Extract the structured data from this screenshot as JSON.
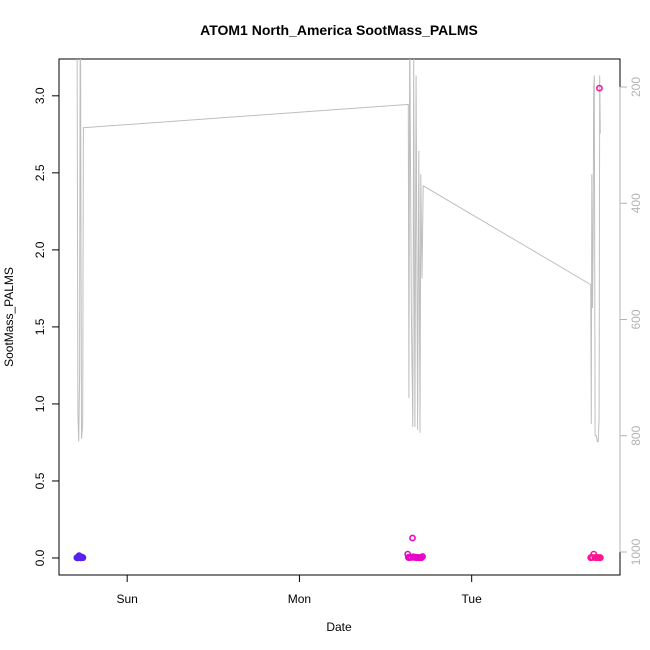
{
  "chart_data": {
    "type": "scatter",
    "title": "ATOM1 North_America SootMass_PALMS",
    "xlabel": "Date",
    "ylabel": "SootMass_PALMS",
    "x_ticks": [
      "Sun",
      "Mon",
      "Tue"
    ],
    "ylim": [
      0,
      3.2
    ],
    "y_ticks": [
      "0.0",
      "0.5",
      "1.0",
      "1.5",
      "2.0",
      "2.5",
      "3.0"
    ],
    "y2_ticks": [
      "200",
      "400",
      "600",
      "800",
      "1000"
    ],
    "y2_reversed": true,
    "grid": false,
    "colors": {
      "line": "#bebebe",
      "right_axis": "#b3b3b3",
      "series_start": "#5522ee",
      "series_mid": "#dd00dd",
      "series_end": "#ff1493"
    },
    "series": [
      {
        "type": "line",
        "axis": "right",
        "color": "#bebebe",
        "points": [
          [
            "Sat 17:00",
            -50
          ],
          [
            "Sat 17:08",
            760
          ],
          [
            "Sat 17:15",
            810
          ],
          [
            "Sat 17:22",
            700
          ],
          [
            "Sat 17:28",
            -50
          ],
          [
            "Sat 17:38",
            805
          ],
          [
            "Sat 17:48",
            780
          ],
          [
            "Sat 17:54",
            270
          ],
          [
            "Mon 15:10",
            230
          ],
          [
            "Mon 15:15",
            735
          ],
          [
            "Mon 15:22",
            80
          ],
          [
            "Mon 15:35",
            580
          ],
          [
            "Mon 15:48",
            785
          ],
          [
            "Mon 15:55",
            150
          ],
          [
            "Mon 16:05",
            785
          ],
          [
            "Mon 16:15",
            180
          ],
          [
            "Mon 16:28",
            790
          ],
          [
            "Mon 16:38",
            310
          ],
          [
            "Mon 16:48",
            795
          ],
          [
            "Mon 16:55",
            350
          ],
          [
            "Mon 17:05",
            530
          ],
          [
            "Mon 17:15",
            370
          ],
          [
            "Tue 16:35",
            540
          ],
          [
            "Tue 16:40",
            780
          ],
          [
            "Tue 16:44",
            350
          ],
          [
            "Tue 16:50",
            580
          ],
          [
            "Tue 16:55",
            470
          ],
          [
            "Tue 17:00",
            200
          ],
          [
            "Tue 17:05",
            180
          ],
          [
            "Tue 17:12",
            800
          ],
          [
            "Tue 17:22",
            800
          ],
          [
            "Tue 17:30",
            810
          ],
          [
            "Tue 17:38",
            810
          ],
          [
            "Tue 17:45",
            770
          ],
          [
            "Tue 17:50",
            180
          ],
          [
            "Tue 17:55",
            280
          ]
        ]
      },
      {
        "type": "scatter",
        "name": "",
        "points": [
          [
            "Sat 17:00",
            0.002
          ],
          [
            "Sat 17:05",
            0.001
          ],
          [
            "Sat 17:10",
            0.004
          ],
          [
            "Sat 17:15",
            0.002
          ],
          [
            "Sat 17:18",
            0.015
          ],
          [
            "Sat 17:20",
            0.003
          ],
          [
            "Sat 17:25",
            0.008
          ],
          [
            "Sat 17:30",
            0.002
          ],
          [
            "Sat 17:35",
            0.001
          ],
          [
            "Sat 17:40",
            0.003
          ],
          [
            "Sat 17:45",
            0.005
          ],
          [
            "Sat 17:50",
            0.002
          ],
          [
            "Mon 15:05",
            0.025
          ],
          [
            "Mon 15:10",
            0.004
          ],
          [
            "Mon 15:15",
            0.002
          ],
          [
            "Mon 15:25",
            0.006
          ],
          [
            "Mon 15:35",
            0.003
          ],
          [
            "Mon 15:45",
            0.13
          ],
          [
            "Mon 15:50",
            0.008
          ],
          [
            "Mon 16:00",
            0.003
          ],
          [
            "Mon 16:10",
            0.005
          ],
          [
            "Mon 16:20",
            0.002
          ],
          [
            "Mon 16:30",
            0.004
          ],
          [
            "Mon 16:40",
            0.002
          ],
          [
            "Mon 16:50",
            0.003
          ],
          [
            "Mon 17:00",
            0.002
          ],
          [
            "Mon 17:10",
            0.01
          ],
          [
            "Tue 16:35",
            0.002
          ],
          [
            "Tue 16:40",
            0.004
          ],
          [
            "Tue 16:50",
            0.003
          ],
          [
            "Tue 17:00",
            0.025
          ],
          [
            "Tue 17:10",
            0.003
          ],
          [
            "Tue 17:20",
            0.002
          ],
          [
            "Tue 17:30",
            0.004
          ],
          [
            "Tue 17:40",
            0.002
          ],
          [
            "Tue 17:48",
            3.05
          ],
          [
            "Tue 17:50",
            0.003
          ],
          [
            "Tue 17:55",
            0.002
          ]
        ]
      }
    ]
  }
}
